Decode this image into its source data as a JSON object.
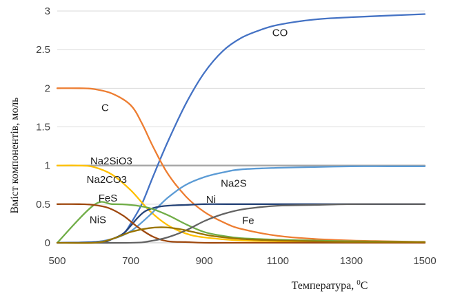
{
  "chart_data": {
    "type": "line",
    "xlabel": "Температура, ",
    "xlabel_sup": "0",
    "xlabel_unit": "C",
    "ylabel": "Вміст компонентів, моль",
    "xlim": [
      500,
      1500
    ],
    "ylim": [
      0,
      3
    ],
    "xticks": [
      500,
      700,
      900,
      1100,
      1300,
      1500
    ],
    "yticks": [
      0,
      0.5,
      1,
      1.5,
      2,
      2.5,
      3
    ],
    "ytick_labels": [
      "0",
      "0.5",
      "1",
      "1.5",
      "2",
      "2.5",
      "3"
    ],
    "grid": "horizontal",
    "legend": "none",
    "series": [
      {
        "name": "Na2SiO3",
        "label_parts": [
          {
            "t": "Na"
          },
          {
            "t": "2",
            "sub": true
          },
          {
            "t": "SiO"
          },
          {
            "t": "3",
            "sub": true
          }
        ],
        "color": "#a5a5a5",
        "label_at": [
          590,
          1.06
        ],
        "x": [
          500,
          700,
          900,
          1100,
          1300,
          1500
        ],
        "y": [
          1,
          1,
          1,
          1,
          1,
          1
        ]
      },
      {
        "name": "CO",
        "label_parts": [
          {
            "t": "CO"
          }
        ],
        "color": "#4472c4",
        "label_at": [
          1085,
          2.72
        ],
        "x": [
          500,
          600,
          650,
          680,
          700,
          730,
          760,
          800,
          850,
          900,
          950,
          1000,
          1050,
          1100,
          1200,
          1300,
          1400,
          1500
        ],
        "y": [
          0,
          0.01,
          0.05,
          0.12,
          0.25,
          0.5,
          0.85,
          1.3,
          1.8,
          2.2,
          2.48,
          2.65,
          2.75,
          2.82,
          2.89,
          2.92,
          2.94,
          2.96
        ]
      },
      {
        "name": "C",
        "label_parts": [
          {
            "t": "C"
          }
        ],
        "color": "#ed7d31",
        "label_at": [
          620,
          1.75
        ],
        "x": [
          500,
          560,
          600,
          650,
          700,
          730,
          760,
          800,
          850,
          900,
          950,
          1000,
          1100,
          1200,
          1300,
          1400,
          1500
        ],
        "y": [
          2,
          2,
          1.99,
          1.93,
          1.78,
          1.55,
          1.25,
          0.9,
          0.6,
          0.4,
          0.27,
          0.18,
          0.09,
          0.05,
          0.03,
          0.02,
          0.01
        ]
      },
      {
        "name": "Na2CO3",
        "label_parts": [
          {
            "t": "Na"
          },
          {
            "t": "2",
            "sub": true
          },
          {
            "t": "CO"
          },
          {
            "t": "3",
            "sub": true
          }
        ],
        "color": "#ffc000",
        "label_at": [
          580,
          0.82
        ],
        "x": [
          500,
          560,
          600,
          650,
          700,
          750,
          800,
          850,
          900,
          1000,
          1100,
          1200,
          1300,
          1500
        ],
        "y": [
          1,
          1,
          0.98,
          0.88,
          0.68,
          0.42,
          0.23,
          0.12,
          0.07,
          0.03,
          0.02,
          0.01,
          0.01,
          0
        ]
      },
      {
        "name": "Na2S",
        "label_parts": [
          {
            "t": "Na"
          },
          {
            "t": "2",
            "sub": true
          },
          {
            "t": "S"
          }
        ],
        "color": "#5b9bd5",
        "label_at": [
          945,
          0.77
        ],
        "x": [
          500,
          600,
          650,
          700,
          750,
          800,
          850,
          900,
          950,
          1000,
          1100,
          1200,
          1300,
          1400,
          1500
        ],
        "y": [
          0,
          0.01,
          0.05,
          0.15,
          0.35,
          0.58,
          0.75,
          0.85,
          0.91,
          0.95,
          0.97,
          0.98,
          0.99,
          0.99,
          0.99
        ]
      },
      {
        "name": "Ni",
        "label_parts": [
          {
            "t": "Ni"
          }
        ],
        "color": "#264478",
        "label_at": [
          905,
          0.56
        ],
        "x": [
          500,
          620,
          650,
          680,
          700,
          720,
          740,
          770,
          800,
          850,
          900,
          1000,
          1500
        ],
        "y": [
          0,
          0.01,
          0.05,
          0.12,
          0.22,
          0.33,
          0.41,
          0.46,
          0.48,
          0.49,
          0.5,
          0.5,
          0.5
        ]
      },
      {
        "name": "FeS",
        "label_parts": [
          {
            "t": "FeS"
          }
        ],
        "color": "#70ad47",
        "label_at": [
          612,
          0.58
        ],
        "x": [
          500,
          600,
          650,
          700,
          750,
          800,
          850,
          900,
          950,
          1000,
          1100,
          1200,
          1300,
          1500
        ],
        "y": [
          0,
          0.49,
          0.5,
          0.49,
          0.45,
          0.36,
          0.24,
          0.14,
          0.09,
          0.06,
          0.04,
          0.03,
          0.02,
          0.01
        ]
      },
      {
        "name": "NiS",
        "label_parts": [
          {
            "t": "NiS"
          }
        ],
        "color": "#9e480e",
        "label_at": [
          588,
          0.3
        ],
        "x": [
          500,
          560,
          600,
          640,
          680,
          720,
          760,
          800,
          850,
          900,
          1000,
          1500
        ],
        "y": [
          0.5,
          0.5,
          0.49,
          0.45,
          0.35,
          0.2,
          0.08,
          0.02,
          0.01,
          0,
          0,
          0
        ]
      },
      {
        "name": "Fe",
        "label_parts": [
          {
            "t": "Fe"
          }
        ],
        "color": "#636363",
        "label_at": [
          1003,
          0.29
        ],
        "x": [
          500,
          700,
          750,
          800,
          850,
          900,
          950,
          1000,
          1050,
          1100,
          1200,
          1300,
          1500
        ],
        "y": [
          0,
          0,
          0.02,
          0.07,
          0.16,
          0.28,
          0.37,
          0.43,
          0.46,
          0.48,
          0.49,
          0.5,
          0.5
        ]
      },
      {
        "name": "",
        "label_parts": [],
        "color": "#997300",
        "label_at": null,
        "x": [
          500,
          600,
          650,
          700,
          750,
          790,
          830,
          870,
          920,
          1000,
          1100,
          1200,
          1300,
          1500
        ],
        "y": [
          0,
          0,
          0.05,
          0.14,
          0.19,
          0.2,
          0.18,
          0.14,
          0.09,
          0.05,
          0.03,
          0.02,
          0.01,
          0.01
        ]
      }
    ]
  }
}
